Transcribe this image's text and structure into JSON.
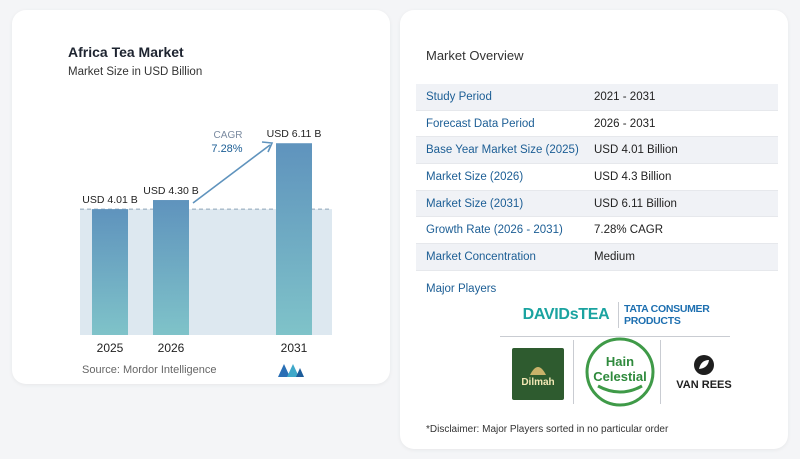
{
  "title": "Africa Tea Market",
  "subtitle": "Market Size in USD Billion",
  "source": "Source:  Mordor Intelligence",
  "cagr_label": "CAGR",
  "cagr_value": "7.28%",
  "colors": {
    "bar_top": "#5f93bd",
    "bar_bottom": "#7fc3c9",
    "band": "#dde8f0",
    "arrow": "#5f93bd",
    "label_blue": "#1c5e95"
  },
  "chart_data": {
    "type": "bar",
    "categories": [
      "2025",
      "2026",
      "2031"
    ],
    "values": [
      4.01,
      4.3,
      6.11
    ],
    "value_labels": [
      "USD 4.01 B",
      "USD 4.30 B",
      "USD 6.11 B"
    ],
    "ylim": [
      0,
      6.85
    ],
    "reference_line": 4.01,
    "xlabel": "",
    "ylabel": ""
  },
  "overview": {
    "title": "Market Overview",
    "rows": [
      {
        "label": "Study Period",
        "value": "2021 - 2031"
      },
      {
        "label": "Forecast Data Period",
        "value": "2026 - 2031"
      },
      {
        "label": "Base Year Market Size (2025)",
        "value": "USD 4.01 Billion"
      },
      {
        "label": "Market Size (2026)",
        "value": "USD 4.3 Billion"
      },
      {
        "label": "Market Size (2031)",
        "value": "USD 6.11 Billion"
      },
      {
        "label": "Growth Rate (2026 - 2031)",
        "value": "7.28% CAGR"
      },
      {
        "label": "Market Concentration",
        "value": "Medium"
      }
    ]
  },
  "major_players": {
    "title": "Major Players",
    "logos": [
      {
        "name": "DAVIDsTEA",
        "text": "DAVIDsTEA"
      },
      {
        "name": "TATA CONSUMER PRODUCTS",
        "text": "TATA CONSUMER PRODUCTS"
      },
      {
        "name": "Dilmah",
        "text": "Dilmah"
      },
      {
        "name": "Hain Celestial",
        "text_1": "Hain",
        "text_2": "Celestial"
      },
      {
        "name": "Van Rees",
        "text": "VAN REES"
      }
    ]
  },
  "disclaimer": "*Disclaimer: Major Players sorted in no particular order"
}
